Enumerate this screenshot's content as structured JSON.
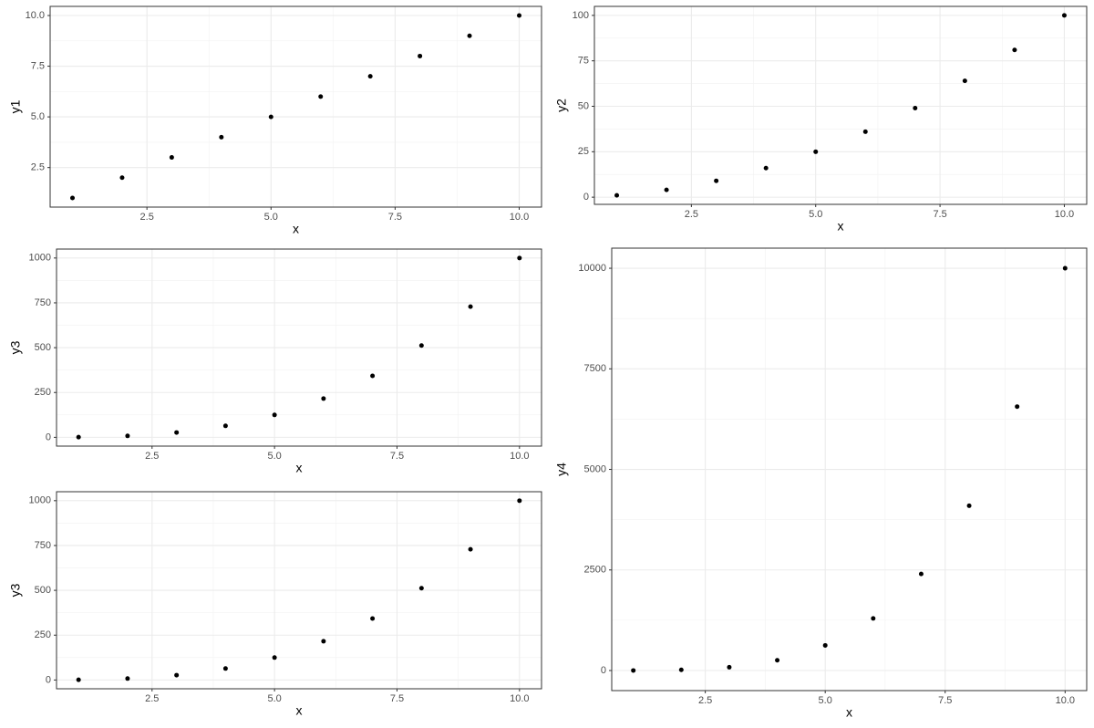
{
  "chart_data": [
    {
      "type": "scatter",
      "xlabel": "x",
      "ylabel": "y1",
      "color": "#000000",
      "grid": true,
      "x": [
        1,
        2,
        3,
        4,
        5,
        6,
        7,
        8,
        9,
        10
      ],
      "values": [
        1,
        2,
        3,
        4,
        5,
        6,
        7,
        8,
        9,
        10
      ],
      "xlim": [
        0.55,
        10.45
      ],
      "ylim": [
        0.55,
        10.45
      ],
      "xticks": [
        2.5,
        {
          "value": 5,
          "label": "5.0"
        },
        7.5,
        {
          "value": 10,
          "label": "10.0"
        }
      ],
      "yticks": [
        2.5,
        {
          "value": 5,
          "label": "5.0"
        },
        7.5,
        {
          "value": 10,
          "label": "10.0"
        }
      ]
    },
    {
      "type": "scatter",
      "xlabel": "x",
      "ylabel": "y2",
      "color": "#000000",
      "grid": true,
      "x": [
        1,
        2,
        3,
        4,
        5,
        6,
        7,
        8,
        9,
        10
      ],
      "values": [
        1,
        4,
        9,
        16,
        25,
        36,
        49,
        64,
        81,
        100
      ],
      "xlim": [
        0.55,
        10.45
      ],
      "ylim": [
        -3.95,
        104.95
      ],
      "xticks": [
        2.5,
        {
          "value": 5,
          "label": "5.0"
        },
        7.5,
        {
          "value": 10,
          "label": "10.0"
        }
      ],
      "yticks": [
        0,
        25,
        50,
        75,
        100
      ]
    },
    {
      "type": "scatter",
      "xlabel": "x",
      "ylabel": "y3",
      "color": "#000000",
      "grid": true,
      "x": [
        1,
        2,
        3,
        4,
        5,
        6,
        7,
        8,
        9,
        10
      ],
      "values": [
        1,
        8,
        27,
        64,
        125,
        216,
        343,
        512,
        729,
        1000
      ],
      "xlim": [
        0.55,
        10.45
      ],
      "ylim": [
        -48.95,
        1049.95
      ],
      "xticks": [
        2.5,
        {
          "value": 5,
          "label": "5.0"
        },
        7.5,
        {
          "value": 10,
          "label": "10.0"
        }
      ],
      "yticks": [
        0,
        250,
        500,
        750,
        1000
      ]
    },
    {
      "type": "scatter",
      "xlabel": "x",
      "ylabel": "y3",
      "color": "#000000",
      "grid": true,
      "x": [
        1,
        2,
        3,
        4,
        5,
        6,
        7,
        8,
        9,
        10
      ],
      "values": [
        1,
        8,
        27,
        64,
        125,
        216,
        343,
        512,
        729,
        1000
      ],
      "xlim": [
        0.55,
        10.45
      ],
      "ylim": [
        -48.95,
        1049.95
      ],
      "xticks": [
        2.5,
        {
          "value": 5,
          "label": "5.0"
        },
        7.5,
        {
          "value": 10,
          "label": "10.0"
        }
      ],
      "yticks": [
        0,
        250,
        500,
        750,
        1000
      ]
    },
    {
      "type": "scatter",
      "xlabel": "x",
      "ylabel": "y4",
      "color": "#000000",
      "grid": true,
      "x": [
        1,
        2,
        3,
        4,
        5,
        6,
        7,
        8,
        9,
        10
      ],
      "values": [
        1,
        16,
        81,
        256,
        625,
        1296,
        2401,
        4096,
        6561,
        10000
      ],
      "xlim": [
        0.55,
        10.45
      ],
      "ylim": [
        -498.95,
        10499.95
      ],
      "xticks": [
        2.5,
        {
          "value": 5,
          "label": "5.0"
        },
        7.5,
        {
          "value": 10,
          "label": "10.0"
        }
      ],
      "yticks": [
        0,
        2500,
        5000,
        7500,
        10000
      ]
    }
  ]
}
